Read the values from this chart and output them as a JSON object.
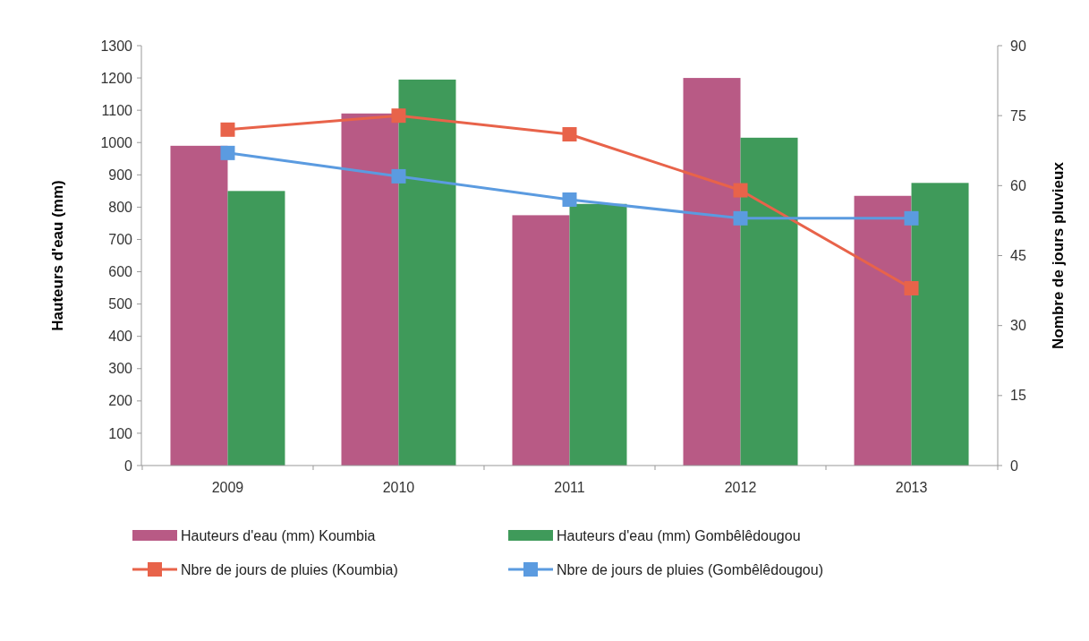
{
  "chart_data": {
    "type": "bar",
    "categories": [
      "2009",
      "2010",
      "2011",
      "2012",
      "2013"
    ],
    "ylabel": "Hauteurs d'eau (mm)",
    "y2label": "Nombre de jours pluvieux",
    "ylim": [
      0,
      1300
    ],
    "yticks": [
      0,
      100,
      200,
      300,
      400,
      500,
      600,
      700,
      800,
      900,
      1000,
      1100,
      1200,
      1300
    ],
    "y2lim": [
      0,
      90
    ],
    "y2ticks": [
      0,
      15,
      30,
      45,
      60,
      75,
      90
    ],
    "grid": false,
    "legend": "bottom",
    "series": [
      {
        "name": "Hauteurs d'eau (mm) Koumbia",
        "color": "#b85a85",
        "values": [
          990,
          1090,
          775,
          1200,
          835
        ]
      },
      {
        "name": "Hauteurs d'eau (mm) Gombêlêdougou",
        "color": "#3f9a5a",
        "values": [
          850,
          1195,
          810,
          1015,
          875
        ]
      },
      {
        "name": "Nbre de jours de pluies (Koumbia)",
        "type": "line",
        "axis": "y2",
        "marker": "square",
        "color": "#e8634a",
        "values": [
          72,
          75,
          71,
          59,
          38
        ]
      },
      {
        "name": "Nbre de jours de pluies (Gombêlêdougou)",
        "type": "line",
        "axis": "y2",
        "marker": "square",
        "color": "#5b9be0",
        "values": [
          67,
          62,
          57,
          53,
          53
        ]
      }
    ]
  }
}
